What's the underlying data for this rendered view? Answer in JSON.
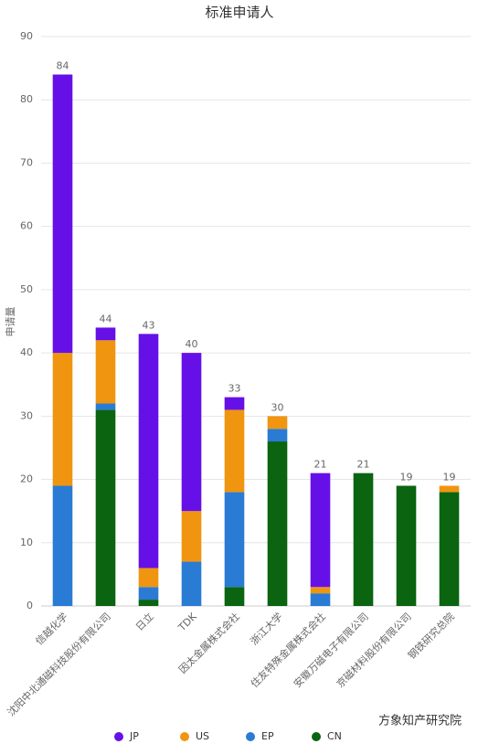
{
  "chart_data": {
    "type": "stacked_bar",
    "title": "标准申请人",
    "y_label": "申请量",
    "categories": [
      "信越化学",
      "沈阳中北通磁科技股份有限公司",
      "日立",
      "TDK",
      "因太金属株式会社",
      "浙江大学",
      "住友特殊金属株式会社",
      "安徽万磁电子有限公司",
      "京磁材料股份有限公司",
      "钢铁研究总院"
    ],
    "series": [
      {
        "name": "JP",
        "color": "#6610e8",
        "values": [
          44,
          2,
          37,
          25,
          2,
          0,
          18,
          0,
          0,
          0
        ]
      },
      {
        "name": "US",
        "color": "#f0950f",
        "values": [
          21,
          10,
          3,
          8,
          13,
          2,
          1,
          0,
          0,
          1
        ]
      },
      {
        "name": "EP",
        "color": "#2a7bd4",
        "values": [
          19,
          1,
          2,
          7,
          15,
          2,
          2,
          0,
          0,
          0
        ]
      },
      {
        "name": "CN",
        "color": "#0a6410",
        "values": [
          0,
          31,
          1,
          0,
          3,
          26,
          0,
          21,
          19,
          18
        ]
      }
    ],
    "totals": [
      84,
      44,
      43,
      40,
      33,
      30,
      21,
      21,
      19,
      19
    ],
    "ylim": [
      0,
      90
    ],
    "yticks": [
      0,
      10,
      20,
      30,
      40,
      50,
      60,
      70,
      80,
      90
    ],
    "grid": true,
    "legend": "bottom",
    "footer": "方象知产研究院"
  }
}
